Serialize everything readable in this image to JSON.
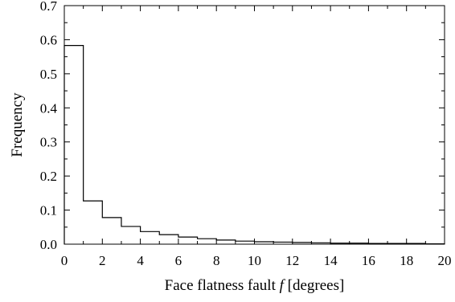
{
  "chart_data": {
    "type": "histogram",
    "xlabel_prefix": "Face flatness fault ",
    "xlabel_symbol": "f",
    "xlabel_suffix": " [degrees]",
    "ylabel": "Frequency",
    "xlim": [
      0,
      20
    ],
    "ylim": [
      0,
      0.7
    ],
    "x_ticks": [
      0,
      2,
      4,
      6,
      8,
      10,
      12,
      14,
      16,
      18,
      20
    ],
    "x_minor_step": 1,
    "y_ticks": [
      0.0,
      0.1,
      0.2,
      0.3,
      0.4,
      0.5,
      0.6,
      0.7
    ],
    "y_minor_step": 0.05,
    "x_tick_labels": [
      "0",
      "2",
      "4",
      "6",
      "8",
      "10",
      "12",
      "14",
      "16",
      "18",
      "20"
    ],
    "y_tick_labels": [
      "0.0",
      "0.1",
      "0.2",
      "0.3",
      "0.4",
      "0.5",
      "0.6",
      "0.7"
    ],
    "bin_width": 1,
    "bin_starts": [
      0,
      1,
      2,
      3,
      4,
      5,
      6,
      7,
      8,
      9,
      10,
      11,
      12,
      13,
      14,
      15,
      16,
      17,
      18,
      19
    ],
    "values": [
      0.583,
      0.127,
      0.078,
      0.052,
      0.037,
      0.028,
      0.021,
      0.016,
      0.012,
      0.009,
      0.007,
      0.006,
      0.005,
      0.004,
      0.003,
      0.003,
      0.002,
      0.002,
      0.002,
      0.001
    ],
    "grid": false,
    "legend": "none",
    "color": "#000000"
  }
}
